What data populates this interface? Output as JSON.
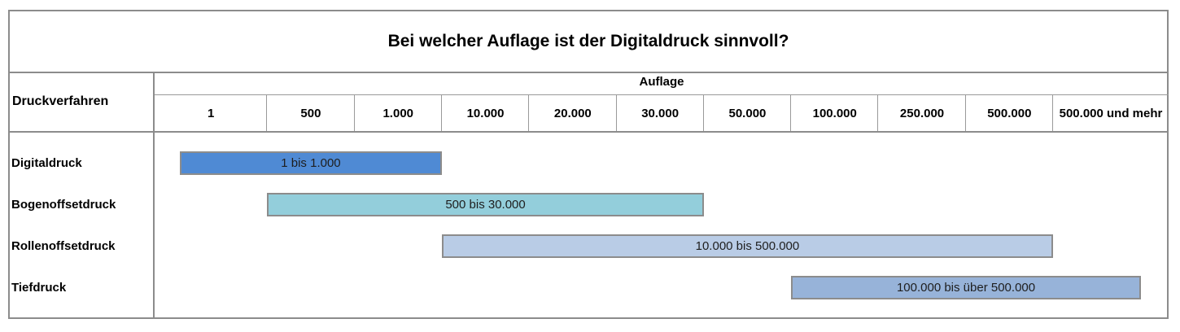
{
  "chart_data": {
    "type": "bar",
    "title": "Bei welcher Auflage ist der Digitaldruck sinnvoll?",
    "row_header": "Druckverfahren",
    "axis_label": "Auflage",
    "categories": [
      "1",
      "500",
      "1.000",
      "10.000",
      "20.000",
      "30.000",
      "50.000",
      "100.000",
      "250.000",
      "500.000",
      "500.000 und mehr"
    ],
    "series": [
      {
        "name": "Digitaldruck",
        "label": "1 bis 1.000",
        "start": 1,
        "end": 1000,
        "color": "#4f8ad4"
      },
      {
        "name": "Bogenoffsetdruck",
        "label": "500 bis 30.000",
        "start": 500,
        "end": 30000,
        "color": "#93cedb"
      },
      {
        "name": "Rollenoffsetdruck",
        "label": "10.000 bis 500.000",
        "start": 10000,
        "end": 500000,
        "color": "#b9cce6"
      },
      {
        "name": "Tiefdruck",
        "label": "100.000 bis über 500.000",
        "start": 100000,
        "end": "500.000 und mehr",
        "color": "#97b3d9"
      }
    ]
  }
}
